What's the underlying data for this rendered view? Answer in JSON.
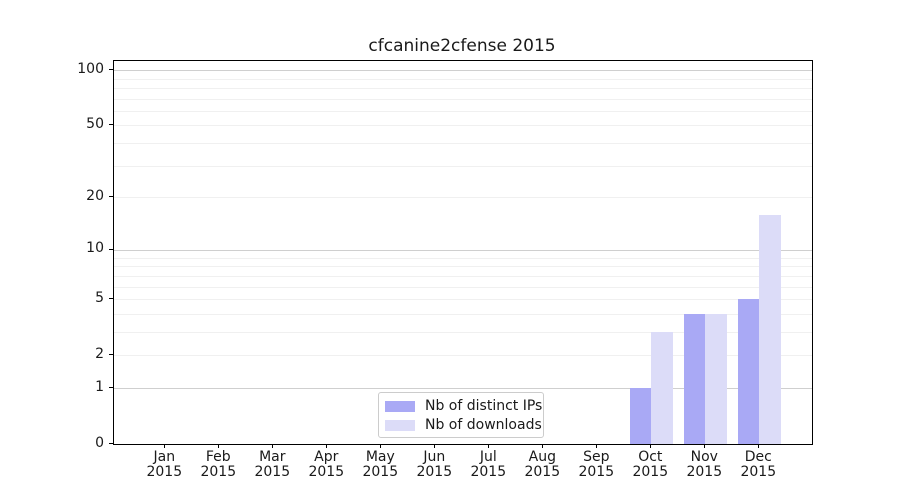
{
  "title": "cfcanine2cfense 2015",
  "legend": {
    "items": [
      {
        "label": "Nb of distinct IPs",
        "color": "#a9a9f5"
      },
      {
        "label": "Nb of downloads",
        "color": "#dcdcf8"
      }
    ]
  },
  "y_axis": {
    "tick_values": [
      0,
      1,
      2,
      5,
      10,
      20,
      50,
      100
    ],
    "tick_labels": [
      "0",
      "1",
      "2",
      "5",
      "10",
      "20",
      "50",
      "100"
    ]
  },
  "x_axis": {
    "months": [
      "Jan",
      "Feb",
      "Mar",
      "Apr",
      "May",
      "Jun",
      "Jul",
      "Aug",
      "Sep",
      "Oct",
      "Nov",
      "Dec"
    ],
    "year": "2015"
  },
  "chart_data": {
    "type": "bar",
    "title": "cfcanine2cfense 2015",
    "categories": [
      "Jan 2015",
      "Feb 2015",
      "Mar 2015",
      "Apr 2015",
      "May 2015",
      "Jun 2015",
      "Jul 2015",
      "Aug 2015",
      "Sep 2015",
      "Oct 2015",
      "Nov 2015",
      "Dec 2015"
    ],
    "series": [
      {
        "name": "Nb of distinct IPs",
        "color": "#a9a9f5",
        "values": [
          0,
          0,
          0,
          0,
          0,
          0,
          0,
          0,
          0,
          1,
          4,
          5
        ]
      },
      {
        "name": "Nb of downloads",
        "color": "#dcdcf8",
        "values": [
          0,
          0,
          0,
          0,
          0,
          0,
          0,
          0,
          0,
          3,
          4,
          16
        ]
      }
    ],
    "yscale": "log1p",
    "y_ticks": [
      0,
      1,
      2,
      5,
      10,
      20,
      50,
      100
    ],
    "ylim": [
      0,
      112
    ],
    "grid": "horizontal",
    "major_gridline_values": [
      1,
      10,
      100
    ],
    "minor_gridline_values": [
      2,
      3,
      4,
      5,
      6,
      7,
      8,
      9,
      20,
      30,
      40,
      50,
      60,
      70,
      80,
      90
    ],
    "legend_position": "lower center inside axes"
  },
  "colors": {
    "major_grid": "#cfcfcf",
    "minor_grid": "#f0f0f0",
    "spine": "#000000",
    "text": "#1a1a1a",
    "legend_border": "#cccccc",
    "background": "#ffffff"
  }
}
